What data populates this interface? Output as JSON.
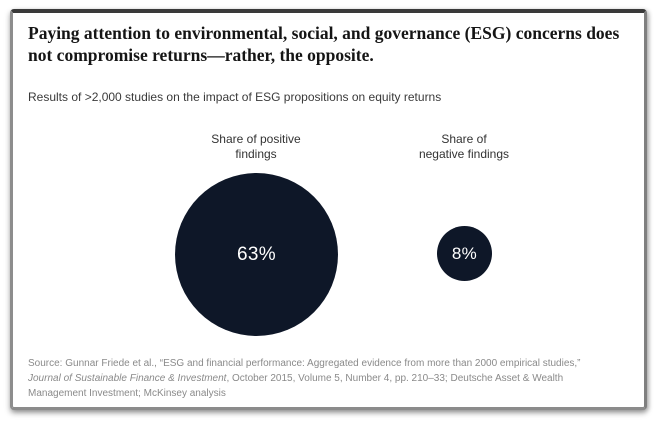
{
  "card": {
    "title": "Paying attention to environmental, social, and governance (ESG) concerns does not compromise returns—rather, the opposite.",
    "subtitle": "Results of >2,000 studies on the impact of ESG propositions on equity returns"
  },
  "chart_data": {
    "type": "bubble",
    "title": "Results of >2,000 studies on the impact of ESG propositions on equity returns",
    "categories": [
      "Share of positive findings",
      "Share of negative findings"
    ],
    "values": [
      63,
      8
    ],
    "unit": "%",
    "value_labels": [
      "63%",
      "8%"
    ],
    "bubble_color": "#0e1728",
    "value_text_color": "#ffffff",
    "legend": "none",
    "layout": "two circles side by side, areas proportional to values, value label centered inside each circle"
  },
  "bubbles": [
    {
      "label": "Share of positive\nfindings",
      "value_label": "63%"
    },
    {
      "label": "Share of\nnegative findings",
      "value_label": "8%"
    }
  ],
  "source": {
    "line1": "Source: Gunnar Friede et al., “ESG and financial performance: Aggregated evidence from more than 2000 empirical studies,”",
    "line2_italic": "Journal of Sustainable Finance & Investment",
    "line2_rest": ", October 2015, Volume 5, Number 4, pp. 210–33; Deutsche Asset & Wealth",
    "line3": "Management Investment; McKinsey analysis"
  }
}
